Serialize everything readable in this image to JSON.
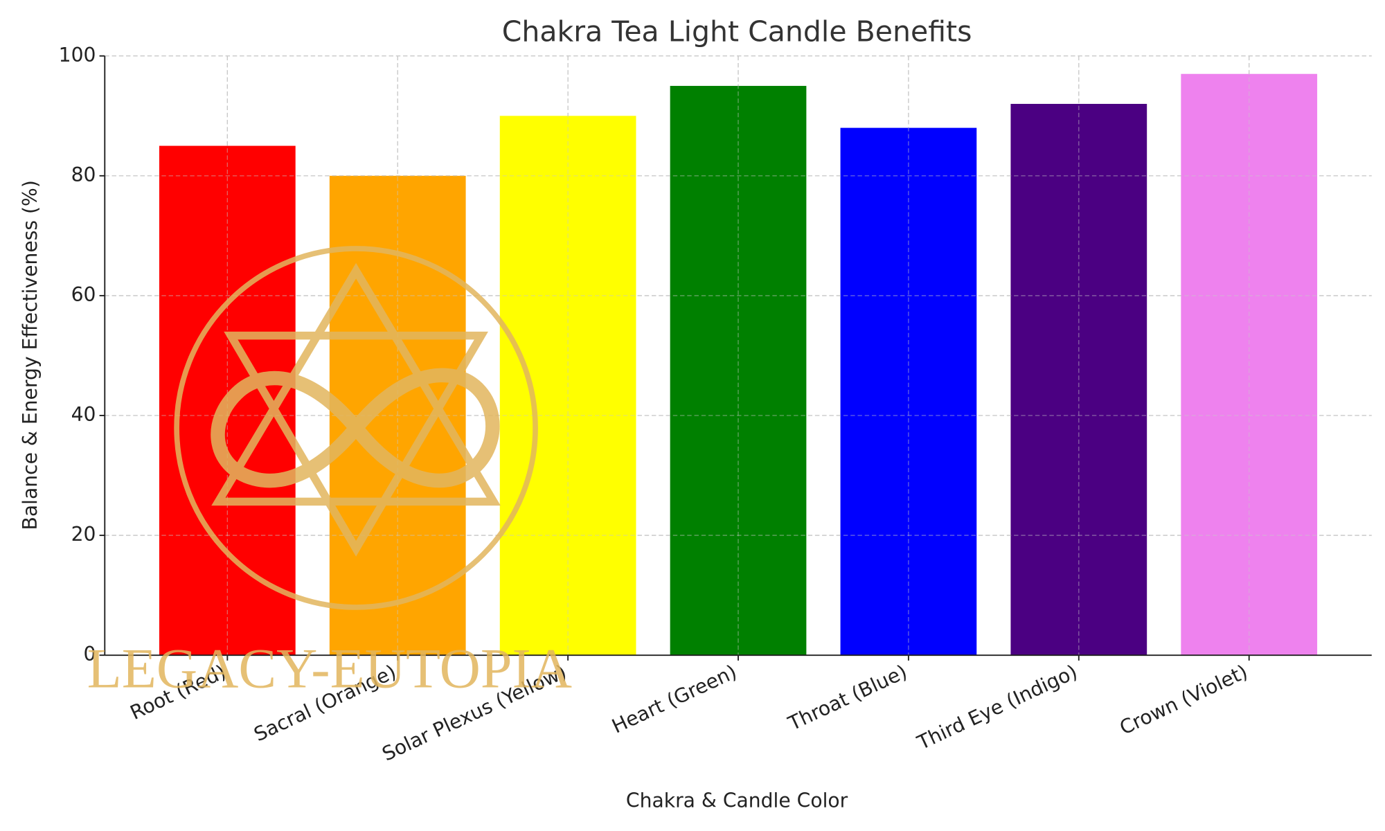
{
  "chart_data": {
    "type": "bar",
    "title": "Chakra Tea Light Candle Benefits",
    "x_label": "Chakra & Candle Color",
    "y_label": "Balance & Energy Effectiveness (%)",
    "categories": [
      "Root (Red)",
      "Sacral (Orange)",
      "Solar Plexus (Yellow)",
      "Heart (Green)",
      "Throat (Blue)",
      "Third Eye (Indigo)",
      "Crown (Violet)"
    ],
    "values": [
      85,
      80,
      90,
      95,
      88,
      92,
      97
    ],
    "colors": [
      "#ff0000",
      "#ffa500",
      "#ffff00",
      "#008000",
      "#0000ff",
      "#4b0082",
      "#ee82ee"
    ],
    "ylim": [
      0,
      100
    ],
    "yticks": [
      0,
      20,
      40,
      60,
      80,
      100
    ],
    "grid": true,
    "watermark": "LEGACY-EUTOPIA"
  }
}
